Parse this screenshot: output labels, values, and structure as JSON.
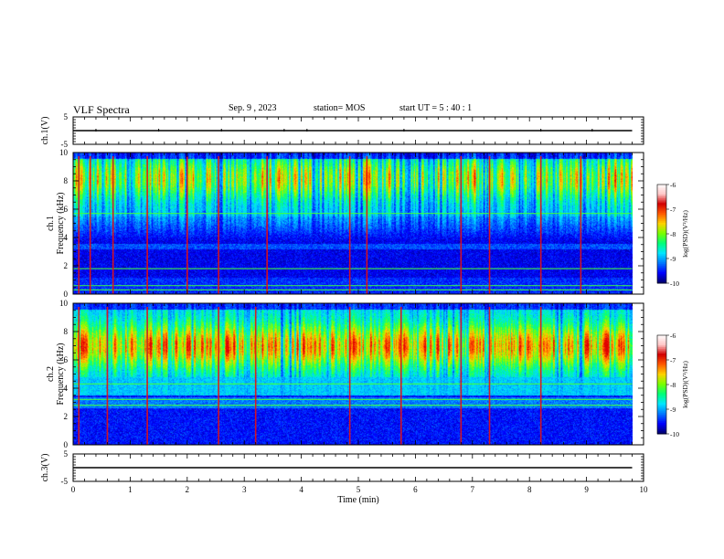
{
  "header": {
    "title": "VLF Spectra",
    "date": "Sep. 9  , 2023",
    "station": "station= MOS",
    "start": "start  UT =   5  : 40 : 1"
  },
  "colors": {
    "axis": "#000000",
    "background": "#ffffff",
    "colormap": [
      "#000000",
      "#00007a",
      "#0000ff",
      "#0080ff",
      "#00e0ff",
      "#00ff80",
      "#80ff00",
      "#ffd000",
      "#ff6000",
      "#e00000",
      "#ffffff"
    ]
  },
  "chart_data": [
    {
      "type": "line",
      "panel": "ch1-waveform",
      "ylabel": "ch.1(V)",
      "yticks": [
        "5",
        "-5"
      ],
      "ylim": [
        -5,
        5
      ],
      "xlim": [
        0,
        10
      ],
      "series": [
        {
          "x": [
            0,
            9.8
          ],
          "y": [
            0,
            0
          ]
        }
      ]
    },
    {
      "type": "heatmap",
      "panel": "ch1-spectrogram",
      "ylabel_line1": "ch.1",
      "ylabel_line2": "Frequency (kHz)",
      "yticks": [
        "0",
        "2",
        "4",
        "6",
        "8",
        "10"
      ],
      "ylim": [
        0,
        10
      ],
      "xlim": [
        0,
        10
      ],
      "data_x_extent": [
        0,
        9.8
      ],
      "colorbar": {
        "label": "log(PSD)(V²/Hz)",
        "ticks": [
          "-6",
          "-7",
          "-8",
          "-9",
          "-10"
        ],
        "range": [
          -10,
          -6
        ]
      },
      "strong_bursts_min": [
        0.1,
        0.3,
        0.7,
        1.3,
        2.0,
        2.55,
        3.4,
        4.85,
        5.15,
        6.8,
        7.3,
        8.2,
        8.9
      ],
      "band_lines_khz": [
        0.3,
        0.6,
        1.8,
        5.7
      ]
    },
    {
      "type": "heatmap",
      "panel": "ch2-spectrogram",
      "ylabel_line1": "ch.2",
      "ylabel_line2": "Frequency (kHz)",
      "yticks": [
        "0",
        "2",
        "4",
        "6",
        "8",
        "10"
      ],
      "ylim": [
        0,
        10
      ],
      "xlim": [
        0,
        10
      ],
      "data_x_extent": [
        0,
        9.8
      ],
      "colorbar": {
        "label": "log(PSD)(V²/Hz)",
        "ticks": [
          "-6",
          "-7",
          "-8",
          "-9",
          "-10"
        ],
        "range": [
          -10,
          -6
        ]
      },
      "strong_bursts_min": [
        0.1,
        0.6,
        1.3,
        2.55,
        3.2,
        4.85,
        5.75,
        6.8,
        7.3,
        8.2
      ],
      "band_lines_khz": [
        2.8,
        3.2,
        4.3
      ]
    },
    {
      "type": "line",
      "panel": "ch3-waveform",
      "ylabel": "ch.3(V)",
      "yticks": [
        "5",
        "-5"
      ],
      "ylim": [
        -5,
        5
      ],
      "xlim": [
        0,
        10
      ],
      "xlabel": "Time  (min)",
      "xticks": [
        "0",
        "1",
        "2",
        "3",
        "4",
        "5",
        "6",
        "7",
        "8",
        "9",
        "10"
      ],
      "series": [
        {
          "x": [
            0,
            9.8
          ],
          "y": [
            0,
            0
          ]
        }
      ]
    }
  ]
}
